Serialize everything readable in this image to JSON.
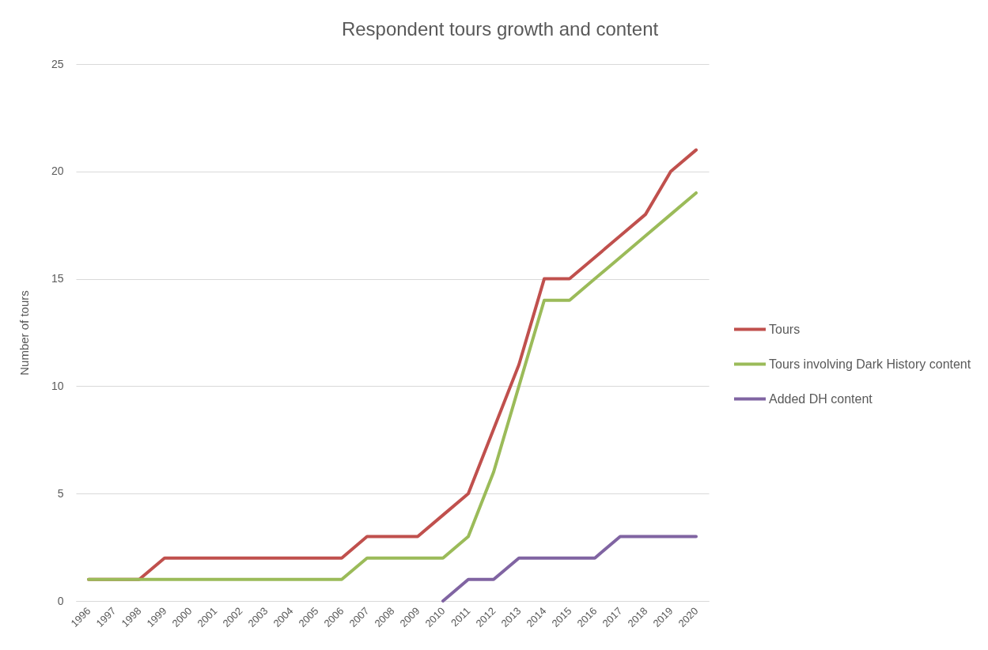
{
  "chart_data": {
    "type": "line",
    "title": "Respondent tours growth and content",
    "ylabel": "Number of tours",
    "categories": [
      "1996",
      "1997",
      "1998",
      "1999",
      "2000",
      "2001",
      "2002",
      "2003",
      "2004",
      "2005",
      "2006",
      "2007",
      "2008",
      "2009",
      "2010",
      "2011",
      "2012",
      "2013",
      "2014",
      "2015",
      "2016",
      "2017",
      "2018",
      "2019",
      "2020"
    ],
    "series": [
      {
        "name": "Tours",
        "color": "#c0504d",
        "values": [
          1,
          1,
          1,
          2,
          2,
          2,
          2,
          2,
          2,
          2,
          2,
          3,
          3,
          3,
          4,
          5,
          8,
          11,
          15,
          15,
          16,
          17,
          18,
          20,
          21
        ]
      },
      {
        "name": "Tours involving Dark History content",
        "color": "#9bbb59",
        "values": [
          1,
          1,
          1,
          1,
          1,
          1,
          1,
          1,
          1,
          1,
          1,
          2,
          2,
          2,
          2,
          3,
          6,
          10,
          14,
          14,
          15,
          16,
          17,
          18,
          19
        ]
      },
      {
        "name": "Added DH content",
        "color": "#8064a2",
        "values": [
          null,
          null,
          null,
          null,
          null,
          null,
          null,
          null,
          null,
          null,
          null,
          null,
          null,
          null,
          0,
          1,
          1,
          2,
          2,
          2,
          2,
          3,
          3,
          3,
          3
        ]
      }
    ],
    "ylim": [
      0,
      25
    ],
    "yticks": [
      0,
      5,
      10,
      15,
      20,
      25
    ],
    "grid": "y",
    "legend": "right",
    "line_style": "solid"
  }
}
